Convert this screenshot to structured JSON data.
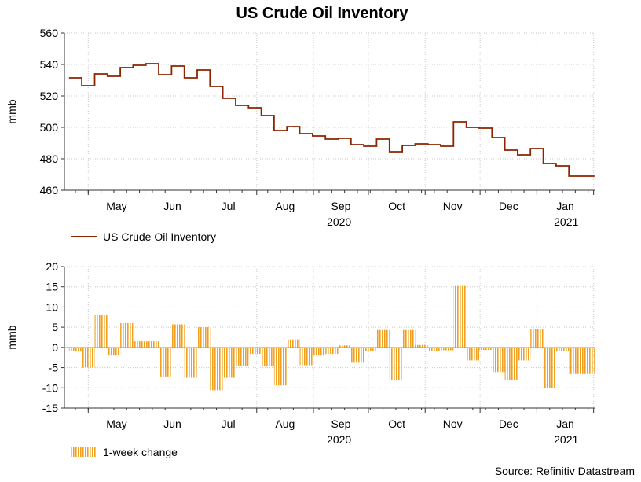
{
  "title": "US Crude Oil Inventory",
  "source": "Source: Refinitiv Datastream",
  "colors": {
    "inventory_line": "#8b2500",
    "change_bar": "#f0a020",
    "grid": "#c8c8c8",
    "axis": "#333333"
  },
  "x_axis": {
    "months": [
      "May",
      "Jun",
      "Jul",
      "Aug",
      "Sep",
      "Oct",
      "Nov",
      "Dec",
      "Jan"
    ],
    "years": [
      "2020",
      "2021"
    ]
  },
  "chart_data": [
    {
      "type": "line",
      "ylabel": "mmb",
      "ylim": [
        460,
        560
      ],
      "yticks": [
        "460",
        "480",
        "500",
        "520",
        "540",
        "560"
      ],
      "grid": true,
      "legend": "bottom-left",
      "x": [
        "2020-04-24",
        "2020-05-01",
        "2020-05-08",
        "2020-05-15",
        "2020-05-22",
        "2020-05-29",
        "2020-06-05",
        "2020-06-12",
        "2020-06-19",
        "2020-06-26",
        "2020-07-03",
        "2020-07-10",
        "2020-07-17",
        "2020-07-24",
        "2020-07-31",
        "2020-08-07",
        "2020-08-14",
        "2020-08-21",
        "2020-08-28",
        "2020-09-04",
        "2020-09-11",
        "2020-09-18",
        "2020-09-25",
        "2020-10-02",
        "2020-10-09",
        "2020-10-16",
        "2020-10-23",
        "2020-10-30",
        "2020-11-06",
        "2020-11-13",
        "2020-11-20",
        "2020-11-27",
        "2020-12-04",
        "2020-12-11",
        "2020-12-18",
        "2020-12-25",
        "2021-01-01",
        "2021-01-08",
        "2021-01-15",
        "2021-01-22",
        "2021-01-29"
      ],
      "series": [
        {
          "name": "US Crude Oil Inventory",
          "values": [
            531.5,
            526.5,
            534.0,
            532.5,
            538.0,
            539.5,
            540.5,
            533.5,
            539.0,
            531.5,
            536.5,
            526.0,
            518.5,
            514.0,
            512.5,
            507.5,
            498.0,
            500.5,
            496.0,
            494.5,
            492.5,
            493.0,
            489.0,
            488.0,
            492.5,
            484.5,
            488.5,
            489.5,
            489.0,
            488.0,
            503.5,
            500.0,
            499.5,
            493.5,
            485.5,
            482.5,
            486.5,
            477.0,
            475.5,
            469.0,
            469.0
          ]
        }
      ]
    },
    {
      "type": "bar",
      "ylabel": "mmb",
      "ylim": [
        -15,
        20
      ],
      "yticks": [
        "-15",
        "-10",
        "-5",
        "0",
        "5",
        "10",
        "15",
        "20"
      ],
      "grid": true,
      "legend": "bottom-left",
      "x": [
        "2020-04-24",
        "2020-05-01",
        "2020-05-08",
        "2020-05-15",
        "2020-05-22",
        "2020-05-29",
        "2020-06-05",
        "2020-06-12",
        "2020-06-19",
        "2020-06-26",
        "2020-07-03",
        "2020-07-10",
        "2020-07-17",
        "2020-07-24",
        "2020-07-31",
        "2020-08-07",
        "2020-08-14",
        "2020-08-21",
        "2020-08-28",
        "2020-09-04",
        "2020-09-11",
        "2020-09-18",
        "2020-09-25",
        "2020-10-02",
        "2020-10-09",
        "2020-10-16",
        "2020-10-23",
        "2020-10-30",
        "2020-11-06",
        "2020-11-13",
        "2020-11-20",
        "2020-11-27",
        "2020-12-04",
        "2020-12-11",
        "2020-12-18",
        "2020-12-25",
        "2021-01-01",
        "2021-01-08",
        "2021-01-15",
        "2021-01-22",
        "2021-01-29"
      ],
      "series": [
        {
          "name": "1-week change",
          "values": [
            -1.0,
            -5.0,
            8.0,
            -2.0,
            6.0,
            1.5,
            1.5,
            -7.2,
            5.7,
            -7.5,
            5.0,
            -10.6,
            -7.5,
            -4.5,
            -1.6,
            -4.7,
            -9.4,
            2.0,
            -4.4,
            -2.0,
            -1.6,
            0.5,
            -3.8,
            -1.0,
            4.3,
            -8.0,
            4.3,
            0.6,
            -0.8,
            -0.7,
            15.2,
            -3.2,
            -0.6,
            -6.1,
            -8.0,
            -3.2,
            4.5,
            -10.0,
            -1.0,
            -6.6,
            -6.6
          ]
        }
      ]
    }
  ]
}
